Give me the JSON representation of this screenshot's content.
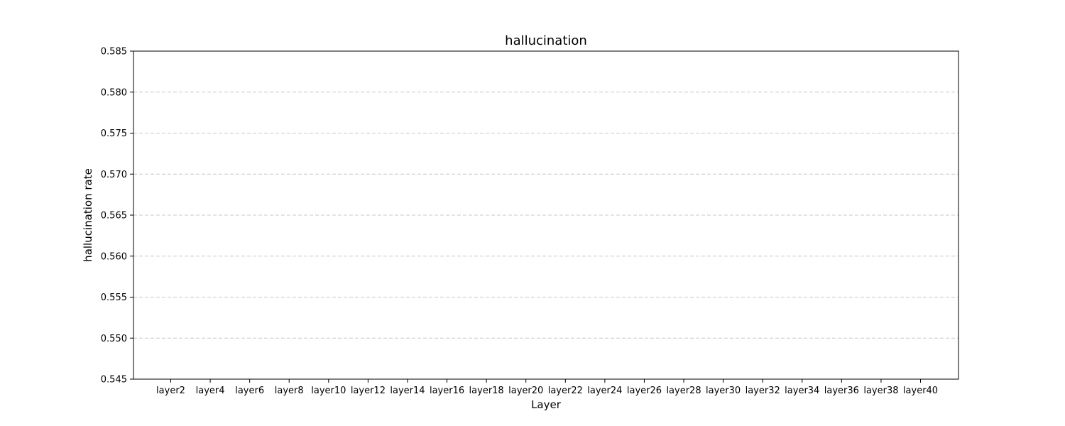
{
  "chart_data": {
    "type": "bar",
    "title": "hallucination",
    "xlabel": "Layer",
    "ylabel": "hallucination rate",
    "categories": [
      "layer2",
      "layer4",
      "layer6",
      "layer8",
      "layer10",
      "layer12",
      "layer14",
      "layer16",
      "layer18",
      "layer20",
      "layer22",
      "layer24",
      "layer26",
      "layer28",
      "layer30",
      "layer32",
      "layer34",
      "layer36",
      "layer38",
      "layer40"
    ],
    "ylim": [
      0.545,
      0.585
    ],
    "yticks": [
      "0.545",
      "0.550",
      "0.555",
      "0.560",
      "0.565",
      "0.570",
      "0.575",
      "0.580",
      "0.585"
    ],
    "grid": "y-dashed",
    "series": []
  }
}
